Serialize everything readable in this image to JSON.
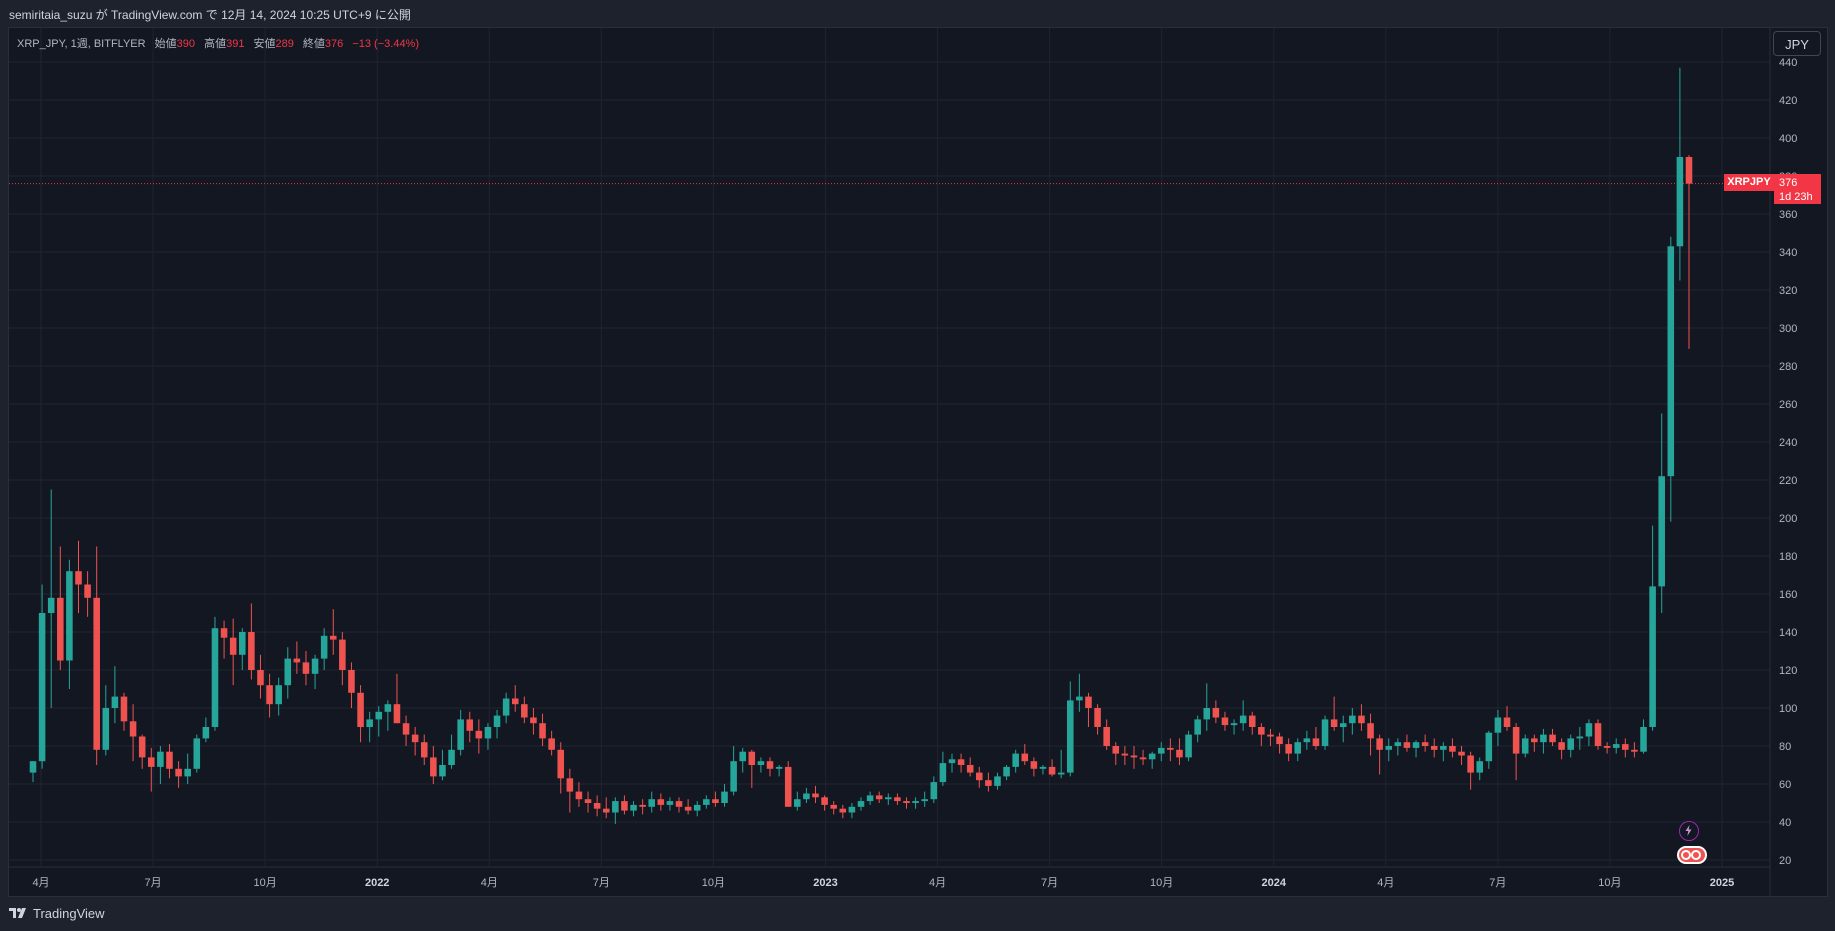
{
  "header": {
    "published_text": "semiritaia_suzu が TradingView.com で 12月 14, 2024 10:25 UTC+9 に公開"
  },
  "legend": {
    "symbol": "XRP_JPY, 1週, BITFLYER",
    "open_label": "始値",
    "open_value": "390",
    "high_label": "高値",
    "high_value": "391",
    "low_label": "安値",
    "low_value": "289",
    "close_label": "終値",
    "close_value": "376",
    "change": "−13 (−3.44%)"
  },
  "currency_button": "JPY",
  "last_price": {
    "ticker": "XRPJPY",
    "price": "376",
    "countdown": "1d 23h"
  },
  "footer": {
    "brand": "TradingView"
  },
  "colors": {
    "up": "#26a69a",
    "down": "#ef5350",
    "background": "#131722",
    "grid": "#1f2430",
    "axis_text": "#b2b5be"
  },
  "icons": [
    "lightning-icon",
    "dividend-icon"
  ],
  "chart_data": {
    "type": "candlestick",
    "title": "XRP_JPY, 1週, BITFLYER",
    "ylim": [
      20,
      440
    ],
    "y_ticks": [
      20,
      40,
      60,
      80,
      100,
      120,
      140,
      160,
      180,
      200,
      220,
      240,
      260,
      280,
      300,
      320,
      340,
      360,
      380,
      400,
      420,
      440
    ],
    "x_ticks": [
      "4月",
      "7月",
      "10月",
      "2022",
      "4月",
      "7月",
      "10月",
      "2023",
      "4月",
      "7月",
      "10月",
      "2024",
      "4月",
      "7月",
      "10月",
      "2025"
    ],
    "grid": true,
    "candles_ohlc": [
      [
        66,
        72,
        61,
        72
      ],
      [
        72,
        165,
        68,
        150
      ],
      [
        150,
        215,
        100,
        158
      ],
      [
        158,
        185,
        120,
        125
      ],
      [
        125,
        178,
        110,
        172
      ],
      [
        172,
        188,
        150,
        165
      ],
      [
        165,
        172,
        148,
        158
      ],
      [
        158,
        185,
        70,
        78
      ],
      [
        78,
        112,
        75,
        100
      ],
      [
        100,
        122,
        92,
        106
      ],
      [
        106,
        108,
        88,
        93
      ],
      [
        93,
        102,
        72,
        85
      ],
      [
        85,
        86,
        68,
        74
      ],
      [
        74,
        79,
        56,
        69
      ],
      [
        69,
        80,
        60,
        77
      ],
      [
        77,
        81,
        63,
        68
      ],
      [
        68,
        72,
        58,
        64
      ],
      [
        64,
        76,
        60,
        68
      ],
      [
        68,
        86,
        66,
        84
      ],
      [
        84,
        95,
        82,
        90
      ],
      [
        90,
        148,
        88,
        142
      ],
      [
        142,
        146,
        126,
        137
      ],
      [
        137,
        147,
        112,
        128
      ],
      [
        128,
        142,
        120,
        140
      ],
      [
        140,
        155,
        115,
        120
      ],
      [
        120,
        128,
        105,
        112
      ],
      [
        112,
        118,
        95,
        102
      ],
      [
        102,
        116,
        96,
        112
      ],
      [
        112,
        132,
        105,
        126
      ],
      [
        126,
        135,
        118,
        124
      ],
      [
        124,
        130,
        112,
        118
      ],
      [
        118,
        128,
        110,
        126
      ],
      [
        126,
        142,
        120,
        138
      ],
      [
        138,
        152,
        128,
        136
      ],
      [
        136,
        140,
        112,
        120
      ],
      [
        120,
        124,
        100,
        108
      ],
      [
        108,
        112,
        82,
        90
      ],
      [
        90,
        98,
        82,
        94
      ],
      [
        94,
        101,
        85,
        98
      ],
      [
        98,
        104,
        88,
        102
      ],
      [
        102,
        118,
        92,
        92
      ],
      [
        92,
        96,
        80,
        86
      ],
      [
        86,
        90,
        75,
        82
      ],
      [
        82,
        86,
        70,
        74
      ],
      [
        74,
        80,
        60,
        64
      ],
      [
        64,
        78,
        62,
        70
      ],
      [
        70,
        86,
        68,
        78
      ],
      [
        78,
        99,
        75,
        94
      ],
      [
        94,
        98,
        82,
        88
      ],
      [
        88,
        94,
        76,
        84
      ],
      [
        84,
        92,
        78,
        90
      ],
      [
        90,
        99,
        84,
        96
      ],
      [
        96,
        108,
        92,
        105
      ],
      [
        105,
        112,
        98,
        102
      ],
      [
        102,
        106,
        92,
        95
      ],
      [
        95,
        100,
        86,
        92
      ],
      [
        92,
        97,
        80,
        84
      ],
      [
        84,
        88,
        75,
        78
      ],
      [
        78,
        82,
        55,
        63
      ],
      [
        63,
        68,
        45,
        56
      ],
      [
        56,
        61,
        48,
        52
      ],
      [
        52,
        56,
        45,
        50
      ],
      [
        50,
        54,
        43,
        47
      ],
      [
        47,
        53,
        42,
        45
      ],
      [
        45,
        53,
        39,
        51
      ],
      [
        51,
        54,
        44,
        46
      ],
      [
        46,
        51,
        43,
        49
      ],
      [
        49,
        52,
        44,
        48
      ],
      [
        48,
        56,
        45,
        52
      ],
      [
        52,
        55,
        46,
        49
      ],
      [
        49,
        53,
        46,
        51
      ],
      [
        51,
        53,
        45,
        48
      ],
      [
        48,
        52,
        44,
        46
      ],
      [
        46,
        51,
        43,
        49
      ],
      [
        49,
        54,
        47,
        52
      ],
      [
        52,
        56,
        48,
        50
      ],
      [
        50,
        60,
        48,
        56
      ],
      [
        56,
        80,
        54,
        72
      ],
      [
        72,
        79,
        66,
        77
      ],
      [
        77,
        78,
        58,
        70
      ],
      [
        70,
        74,
        66,
        72
      ],
      [
        72,
        74,
        64,
        68
      ],
      [
        68,
        70,
        64,
        69
      ],
      [
        69,
        72,
        48,
        48
      ],
      [
        48,
        56,
        46,
        52
      ],
      [
        52,
        58,
        50,
        55
      ],
      [
        55,
        59,
        50,
        53
      ],
      [
        53,
        54,
        46,
        49
      ],
      [
        49,
        51,
        44,
        47
      ],
      [
        47,
        49,
        42,
        45
      ],
      [
        45,
        50,
        42,
        48
      ],
      [
        48,
        53,
        46,
        51
      ],
      [
        51,
        56,
        49,
        54
      ],
      [
        54,
        56,
        50,
        52
      ],
      [
        52,
        55,
        49,
        53
      ],
      [
        53,
        55,
        49,
        51
      ],
      [
        51,
        53,
        47,
        50
      ],
      [
        50,
        53,
        47,
        51
      ],
      [
        51,
        56,
        48,
        52
      ],
      [
        52,
        64,
        50,
        61
      ],
      [
        61,
        77,
        59,
        71
      ],
      [
        71,
        76,
        66,
        73
      ],
      [
        73,
        76,
        66,
        70
      ],
      [
        70,
        74,
        64,
        66
      ],
      [
        66,
        69,
        58,
        62
      ],
      [
        62,
        66,
        56,
        59
      ],
      [
        59,
        66,
        57,
        64
      ],
      [
        64,
        70,
        62,
        69
      ],
      [
        69,
        78,
        66,
        76
      ],
      [
        76,
        81,
        70,
        72
      ],
      [
        72,
        74,
        64,
        68
      ],
      [
        68,
        70,
        65,
        69
      ],
      [
        69,
        73,
        64,
        65
      ],
      [
        65,
        78,
        63,
        66
      ],
      [
        66,
        114,
        64,
        104
      ],
      [
        104,
        118,
        98,
        106
      ],
      [
        106,
        108,
        90,
        100
      ],
      [
        100,
        102,
        86,
        90
      ],
      [
        90,
        94,
        78,
        80
      ],
      [
        80,
        82,
        70,
        76
      ],
      [
        76,
        80,
        70,
        75
      ],
      [
        75,
        80,
        68,
        74
      ],
      [
        74,
        78,
        70,
        73
      ],
      [
        73,
        77,
        68,
        76
      ],
      [
        76,
        82,
        72,
        79
      ],
      [
        79,
        84,
        72,
        78
      ],
      [
        78,
        84,
        70,
        74
      ],
      [
        74,
        88,
        72,
        86
      ],
      [
        86,
        96,
        82,
        94
      ],
      [
        94,
        113,
        88,
        100
      ],
      [
        100,
        104,
        92,
        95
      ],
      [
        95,
        98,
        88,
        91
      ],
      [
        91,
        94,
        86,
        92
      ],
      [
        92,
        104,
        88,
        96
      ],
      [
        96,
        98,
        86,
        90
      ],
      [
        90,
        92,
        80,
        86
      ],
      [
        86,
        89,
        80,
        85
      ],
      [
        85,
        87,
        76,
        81
      ],
      [
        81,
        84,
        72,
        76
      ],
      [
        76,
        84,
        72,
        82
      ],
      [
        82,
        88,
        78,
        84
      ],
      [
        84,
        90,
        78,
        80
      ],
      [
        80,
        96,
        78,
        94
      ],
      [
        94,
        106,
        88,
        90
      ],
      [
        90,
        96,
        82,
        92
      ],
      [
        92,
        100,
        86,
        96
      ],
      [
        96,
        102,
        88,
        92
      ],
      [
        92,
        97,
        75,
        84
      ],
      [
        84,
        86,
        65,
        78
      ],
      [
        78,
        84,
        72,
        80
      ],
      [
        80,
        84,
        75,
        82
      ],
      [
        82,
        86,
        77,
        79
      ],
      [
        79,
        83,
        74,
        82
      ],
      [
        82,
        86,
        77,
        80
      ],
      [
        80,
        84,
        74,
        78
      ],
      [
        78,
        82,
        72,
        80
      ],
      [
        80,
        84,
        74,
        77
      ],
      [
        77,
        80,
        70,
        75
      ],
      [
        75,
        77,
        57,
        66
      ],
      [
        66,
        74,
        62,
        72
      ],
      [
        72,
        88,
        68,
        87
      ],
      [
        87,
        99,
        80,
        95
      ],
      [
        95,
        101,
        88,
        90
      ],
      [
        90,
        92,
        62,
        76
      ],
      [
        76,
        86,
        74,
        84
      ],
      [
        84,
        86,
        77,
        82
      ],
      [
        82,
        89,
        76,
        86
      ],
      [
        86,
        89,
        80,
        82
      ],
      [
        82,
        84,
        73,
        78
      ],
      [
        78,
        86,
        74,
        84
      ],
      [
        84,
        90,
        78,
        85
      ],
      [
        85,
        94,
        80,
        92
      ],
      [
        92,
        94,
        78,
        80
      ],
      [
        80,
        82,
        76,
        79
      ],
      [
        79,
        84,
        76,
        81
      ],
      [
        81,
        84,
        74,
        78
      ],
      [
        78,
        82,
        74,
        77
      ],
      [
        77,
        94,
        76,
        90
      ],
      [
        90,
        196,
        88,
        164
      ],
      [
        164,
        255,
        150,
        222
      ],
      [
        222,
        348,
        198,
        343
      ],
      [
        343,
        437,
        325,
        390
      ],
      [
        390,
        391,
        289,
        376
      ]
    ]
  }
}
